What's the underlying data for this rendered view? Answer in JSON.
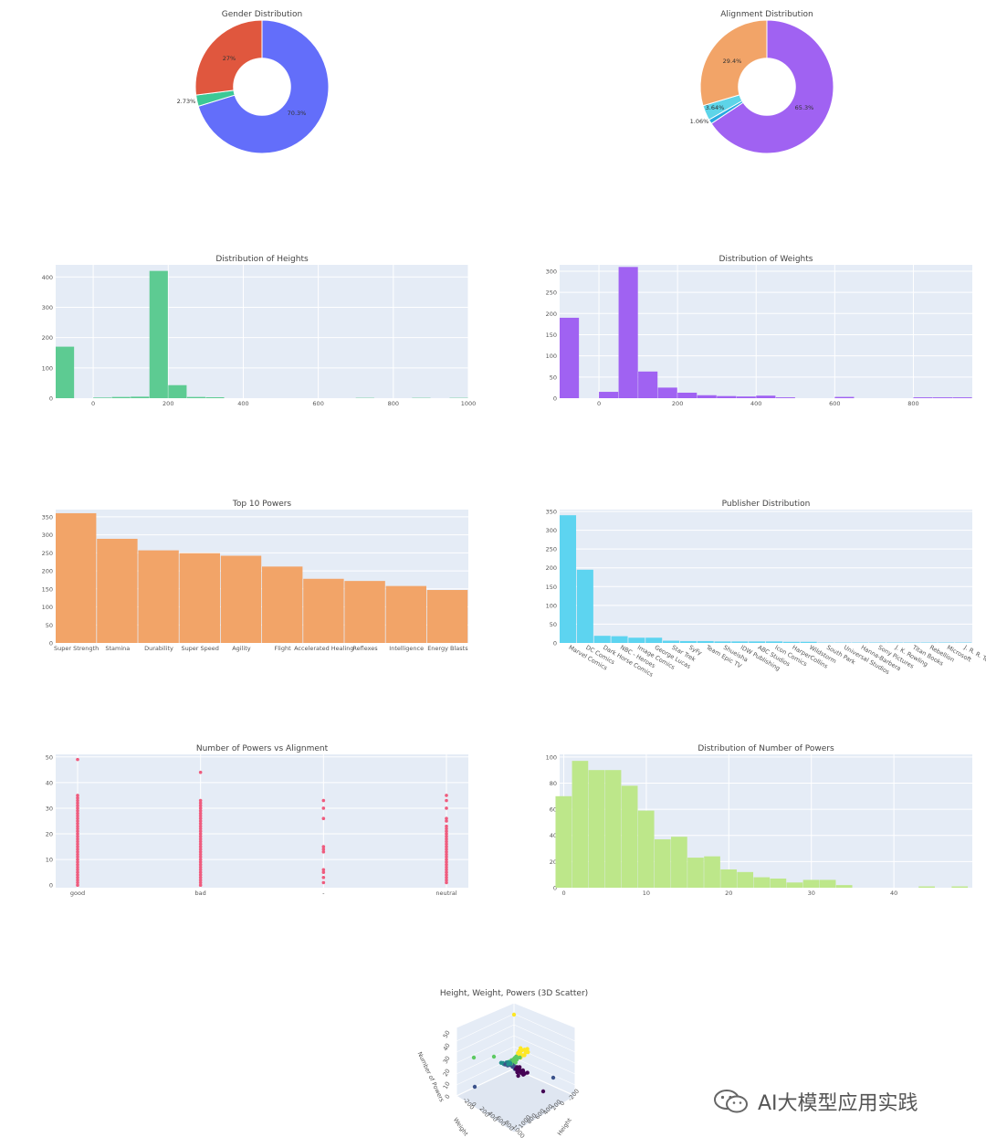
{
  "chart_data": [
    {
      "id": "gender",
      "type": "pie",
      "title": "Gender Distribution",
      "hole": 0.3,
      "slices": [
        {
          "label": "70.3%",
          "value": 70.3,
          "color": "#636EFA"
        },
        {
          "label": "2.73%",
          "value": 2.73,
          "color": "#3CC896"
        },
        {
          "label": "27%",
          "value": 27.0,
          "color": "#E0573E"
        }
      ]
    },
    {
      "id": "alignment",
      "type": "pie",
      "title": "Alignment Distribution",
      "hole": 0.3,
      "slices": [
        {
          "label": "65.3%",
          "value": 65.3,
          "color": "#A062F2"
        },
        {
          "label": "1.06%",
          "value": 1.06,
          "color": "#27A9E0"
        },
        {
          "label": "3.64%",
          "value": 3.64,
          "color": "#5DD4E8"
        },
        {
          "label": "29.4%",
          "value": 29.4,
          "color": "#F2A468"
        }
      ]
    },
    {
      "id": "heights",
      "type": "bar",
      "title": "Distribution of Heights",
      "color": "#5DCB92",
      "xlim": [
        -100,
        1000
      ],
      "ylim": [
        0,
        440
      ],
      "xticks": [
        0,
        200,
        400,
        600,
        800,
        1000
      ],
      "yticks": [
        0,
        100,
        200,
        300,
        400
      ],
      "bin_width": 50,
      "bins": [
        {
          "x": -100,
          "y": 170
        },
        {
          "x": 0,
          "y": 2
        },
        {
          "x": 50,
          "y": 4
        },
        {
          "x": 100,
          "y": 5
        },
        {
          "x": 150,
          "y": 420
        },
        {
          "x": 200,
          "y": 43
        },
        {
          "x": 250,
          "y": 4
        },
        {
          "x": 300,
          "y": 3
        },
        {
          "x": 700,
          "y": 1
        },
        {
          "x": 850,
          "y": 1
        },
        {
          "x": 950,
          "y": 1
        }
      ]
    },
    {
      "id": "weights",
      "type": "bar",
      "title": "Distribution of Weights",
      "color": "#A062F2",
      "xlim": [
        -100,
        950
      ],
      "ylim": [
        0,
        315
      ],
      "xticks": [
        0,
        200,
        400,
        600,
        800
      ],
      "yticks": [
        0,
        50,
        100,
        150,
        200,
        250,
        300
      ],
      "bin_width": 50,
      "bins": [
        {
          "x": -100,
          "y": 190
        },
        {
          "x": 0,
          "y": 15
        },
        {
          "x": 50,
          "y": 310
        },
        {
          "x": 100,
          "y": 63
        },
        {
          "x": 150,
          "y": 25
        },
        {
          "x": 200,
          "y": 13
        },
        {
          "x": 250,
          "y": 7
        },
        {
          "x": 300,
          "y": 5
        },
        {
          "x": 350,
          "y": 4
        },
        {
          "x": 400,
          "y": 6
        },
        {
          "x": 450,
          "y": 2
        },
        {
          "x": 600,
          "y": 3
        },
        {
          "x": 800,
          "y": 2
        },
        {
          "x": 850,
          "y": 2
        },
        {
          "x": 900,
          "y": 2
        }
      ]
    },
    {
      "id": "powers",
      "type": "bar",
      "title": "Top 10 Powers",
      "color": "#F2A468",
      "ylim": [
        0,
        370
      ],
      "yticks": [
        0,
        50,
        100,
        150,
        200,
        250,
        300,
        350
      ],
      "categories": [
        "Super Strength",
        "Stamina",
        "Durability",
        "Super Speed",
        "Agility",
        "Flight",
        "Accelerated Healing",
        "Reflexes",
        "Intelligence",
        "Energy Blasts"
      ],
      "values": [
        360,
        289,
        257,
        249,
        242,
        212,
        178,
        172,
        158,
        147
      ]
    },
    {
      "id": "publisher",
      "type": "bar",
      "title": "Publisher Distribution",
      "color": "#5DD4F0",
      "ylim": [
        0,
        355
      ],
      "yticks": [
        0,
        50,
        100,
        150,
        200,
        250,
        300,
        350
      ],
      "rotated_labels": true,
      "categories": [
        "Marvel Comics",
        "DC Comics",
        "Dark Horse Comics",
        "NBC - Heroes",
        "Image Comics",
        "George Lucas",
        "Star Trek",
        "SyFy",
        "Team Epic TV",
        "Shueisha",
        "IDW Publishing",
        "ABC Studios",
        "Icon Comics",
        "HarperCollins",
        "Wildstorm",
        "South Park",
        "Universal Studios",
        "Hanna-Barbera",
        "Sony Pictures",
        "J. K. Rowling",
        "Titan Books",
        "Rebellion",
        "Microsoft",
        "J. R. R. Tolkien"
      ],
      "values": [
        340,
        195,
        19,
        18,
        14,
        14,
        6,
        5,
        5,
        4,
        4,
        4,
        4,
        3,
        3,
        1,
        1,
        1,
        1,
        1,
        1,
        1,
        1,
        1
      ]
    },
    {
      "id": "powers_vs_alignment",
      "type": "scatter",
      "title": "Number of Powers vs Alignment",
      "color": "#EF5C7E",
      "categories": [
        "good",
        "bad",
        "-",
        "neutral"
      ],
      "ylim": [
        -1,
        51
      ],
      "yticks": [
        0,
        10,
        20,
        30,
        40,
        50
      ],
      "points": {
        "good": {
          "dense_range": [
            0,
            35
          ],
          "extra": [
            49
          ]
        },
        "bad": {
          "dense_range": [
            0,
            33
          ],
          "extra": [
            44
          ]
        },
        "-": {
          "dense_range": null,
          "extra": [
            1,
            3,
            5,
            6,
            13,
            14,
            15,
            26,
            30,
            33
          ]
        },
        "neutral": {
          "dense_range": [
            1,
            23
          ],
          "extra": [
            25,
            26,
            30,
            33,
            35
          ]
        }
      }
    },
    {
      "id": "num_powers",
      "type": "bar",
      "title": "Distribution of Number of Powers",
      "color": "#BDE78A",
      "xlim": [
        -0.5,
        49.5
      ],
      "ylim": [
        0,
        102
      ],
      "xticks": [
        0,
        10,
        20,
        30,
        40
      ],
      "yticks": [
        0,
        20,
        40,
        60,
        80,
        100
      ],
      "bin_width": 2,
      "bins": [
        {
          "x": -1,
          "y": 70
        },
        {
          "x": 1,
          "y": 97
        },
        {
          "x": 3,
          "y": 90
        },
        {
          "x": 5,
          "y": 90
        },
        {
          "x": 7,
          "y": 78
        },
        {
          "x": 9,
          "y": 59
        },
        {
          "x": 11,
          "y": 37
        },
        {
          "x": 13,
          "y": 39
        },
        {
          "x": 15,
          "y": 23
        },
        {
          "x": 17,
          "y": 24
        },
        {
          "x": 19,
          "y": 14
        },
        {
          "x": 21,
          "y": 12
        },
        {
          "x": 23,
          "y": 8
        },
        {
          "x": 25,
          "y": 7
        },
        {
          "x": 27,
          "y": 4
        },
        {
          "x": 29,
          "y": 6
        },
        {
          "x": 31,
          "y": 6
        },
        {
          "x": 33,
          "y": 2
        },
        {
          "x": 43,
          "y": 1
        },
        {
          "x": 47,
          "y": 1
        }
      ]
    },
    {
      "id": "scatter3d",
      "type": "scatter",
      "title": "Height, Weight, Powers (3D Scatter)",
      "axis_labels": [
        "Number of Powers",
        "Weight",
        "Height"
      ],
      "z_ticks": [
        "0",
        "10",
        "20",
        "30",
        "40",
        "50"
      ],
      "x_ticks": [
        "-200",
        "0",
        "200",
        "400",
        "600",
        "800",
        "1000"
      ],
      "y_ticks": [
        "1000",
        "800",
        "600",
        "400",
        "200",
        "0",
        "-200"
      ],
      "colorscale": [
        "#440154",
        "#3B528B",
        "#21908C",
        "#5DC963",
        "#FDE725"
      ]
    }
  ],
  "watermark": {
    "text": "AI大模型应用实践",
    "icon": "wechat-icon"
  }
}
